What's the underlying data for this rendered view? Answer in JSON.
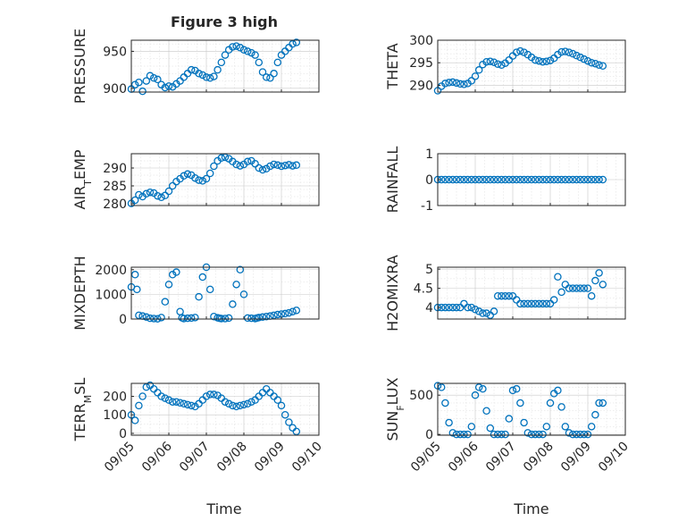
{
  "figure": {
    "title": "Figure 3 high",
    "xlabel": "Time"
  },
  "chart_data": [
    {
      "type": "scatter",
      "panel": 1,
      "ylabel": "PRESSURE",
      "ylim": [
        895,
        965
      ],
      "yticks": [
        900,
        950
      ],
      "yticklabels": [
        "900",
        "950"
      ],
      "xlim": [
        0,
        5
      ],
      "minor_x_per_day": 4,
      "minor_y": [
        910,
        920,
        930,
        940,
        960
      ],
      "show_xticklabels": false,
      "x": [
        0.0,
        0.1,
        0.2,
        0.3,
        0.4,
        0.5,
        0.6,
        0.7,
        0.8,
        0.9,
        1.0,
        1.1,
        1.2,
        1.3,
        1.4,
        1.5,
        1.6,
        1.7,
        1.8,
        1.9,
        2.0,
        2.1,
        2.2,
        2.3,
        2.4,
        2.5,
        2.6,
        2.7,
        2.8,
        2.9,
        3.0,
        3.1,
        3.2,
        3.3,
        3.4,
        3.5,
        3.6,
        3.7,
        3.8,
        3.9,
        4.0,
        4.1,
        4.2,
        4.3,
        4.4
      ],
      "y": [
        899,
        905,
        908,
        896,
        910,
        917,
        914,
        912,
        905,
        901,
        903,
        902,
        906,
        910,
        915,
        920,
        925,
        924,
        920,
        918,
        915,
        914,
        916,
        925,
        935,
        945,
        952,
        956,
        957,
        955,
        952,
        950,
        948,
        945,
        935,
        922,
        915,
        914,
        920,
        935,
        945,
        950,
        955,
        960,
        962
      ]
    },
    {
      "type": "scatter",
      "panel": 2,
      "ylabel": "THETA",
      "ylim": [
        288.5,
        300
      ],
      "yticks": [
        290,
        295,
        300
      ],
      "yticklabels": [
        "290",
        "295",
        "300"
      ],
      "xlim": [
        0,
        5
      ],
      "minor_x_per_day": 4,
      "minor_y": [
        291,
        292,
        293,
        294,
        296,
        297,
        298,
        299
      ],
      "show_xticklabels": false,
      "x": [
        0.0,
        0.1,
        0.2,
        0.3,
        0.4,
        0.5,
        0.6,
        0.7,
        0.8,
        0.9,
        1.0,
        1.1,
        1.2,
        1.3,
        1.4,
        1.5,
        1.6,
        1.7,
        1.8,
        1.9,
        2.0,
        2.1,
        2.2,
        2.3,
        2.4,
        2.5,
        2.6,
        2.7,
        2.8,
        2.9,
        3.0,
        3.1,
        3.2,
        3.3,
        3.4,
        3.5,
        3.6,
        3.7,
        3.8,
        3.9,
        4.0,
        4.1,
        4.2,
        4.3,
        4.4
      ],
      "y": [
        288.8,
        289.8,
        290.4,
        290.6,
        290.7,
        290.5,
        290.3,
        290.2,
        290.4,
        291.0,
        292.0,
        293.4,
        294.6,
        295.2,
        295.3,
        295.1,
        294.7,
        294.5,
        294.9,
        295.6,
        296.5,
        297.3,
        297.6,
        297.3,
        296.8,
        296.2,
        295.6,
        295.4,
        295.2,
        295.3,
        295.5,
        296.0,
        296.8,
        297.4,
        297.5,
        297.3,
        297.0,
        296.6,
        296.2,
        295.8,
        295.4,
        295.0,
        294.8,
        294.5,
        294.3
      ]
    },
    {
      "type": "scatter",
      "panel": 3,
      "ylabel": "AIR_TEMP",
      "ylim": [
        279.5,
        294
      ],
      "yticks": [
        280,
        285,
        290
      ],
      "yticklabels": [
        "280",
        "285",
        "290"
      ],
      "xlim": [
        0,
        5
      ],
      "minor_x_per_day": 4,
      "minor_y": [
        282,
        284,
        286,
        288,
        292
      ],
      "show_xticklabels": false,
      "x": [
        0.0,
        0.1,
        0.2,
        0.3,
        0.4,
        0.5,
        0.6,
        0.7,
        0.8,
        0.9,
        1.0,
        1.1,
        1.2,
        1.3,
        1.4,
        1.5,
        1.6,
        1.7,
        1.8,
        1.9,
        2.0,
        2.1,
        2.2,
        2.3,
        2.4,
        2.5,
        2.6,
        2.7,
        2.8,
        2.9,
        3.0,
        3.1,
        3.2,
        3.3,
        3.4,
        3.5,
        3.6,
        3.7,
        3.8,
        3.9,
        4.0,
        4.1,
        4.2,
        4.3,
        4.4
      ],
      "y": [
        280.1,
        281.0,
        282.5,
        282.0,
        282.8,
        283.2,
        283.0,
        282.2,
        281.8,
        282.3,
        283.5,
        285.0,
        286.2,
        287.0,
        287.8,
        288.3,
        288.0,
        287.2,
        286.6,
        286.4,
        287.0,
        288.5,
        290.5,
        292.0,
        292.8,
        293.0,
        292.6,
        291.8,
        291.0,
        290.6,
        291.0,
        291.8,
        292.0,
        291.2,
        290.0,
        289.5,
        289.8,
        290.5,
        291.0,
        290.8,
        290.5,
        290.7,
        290.9,
        290.6,
        290.8
      ]
    },
    {
      "type": "scatter",
      "panel": 4,
      "ylabel": "RAINFALL",
      "ylim": [
        -1,
        1
      ],
      "yticks": [
        -1,
        0,
        1
      ],
      "yticklabels": [
        "-1",
        "0",
        "1"
      ],
      "xlim": [
        0,
        5
      ],
      "minor_x_per_day": 4,
      "minor_y": [],
      "show_xticklabels": false,
      "x": [
        0.0,
        0.1,
        0.2,
        0.3,
        0.4,
        0.5,
        0.6,
        0.7,
        0.8,
        0.9,
        1.0,
        1.1,
        1.2,
        1.3,
        1.4,
        1.5,
        1.6,
        1.7,
        1.8,
        1.9,
        2.0,
        2.1,
        2.2,
        2.3,
        2.4,
        2.5,
        2.6,
        2.7,
        2.8,
        2.9,
        3.0,
        3.1,
        3.2,
        3.3,
        3.4,
        3.5,
        3.6,
        3.7,
        3.8,
        3.9,
        4.0,
        4.1,
        4.2,
        4.3,
        4.4
      ],
      "y": [
        0,
        0,
        0,
        0,
        0,
        0,
        0,
        0,
        0,
        0,
        0,
        0,
        0,
        0,
        0,
        0,
        0,
        0,
        0,
        0,
        0,
        0,
        0,
        0,
        0,
        0,
        0,
        0,
        0,
        0,
        0,
        0,
        0,
        0,
        0,
        0,
        0,
        0,
        0,
        0,
        0,
        0,
        0,
        0,
        0
      ]
    },
    {
      "type": "scatter",
      "panel": 5,
      "ylabel": "MIXDEPTH",
      "ylim": [
        0,
        2100
      ],
      "yticks": [
        0,
        1000,
        2000
      ],
      "yticklabels": [
        "0",
        "1000",
        "2000"
      ],
      "xlim": [
        0,
        5
      ],
      "minor_x_per_day": 4,
      "minor_y": [
        500,
        1500
      ],
      "show_xticklabels": false,
      "x": [
        0.0,
        0.1,
        0.15,
        0.2,
        0.3,
        0.4,
        0.5,
        0.6,
        0.7,
        0.8,
        0.9,
        1.0,
        1.1,
        1.2,
        1.3,
        1.35,
        1.4,
        1.5,
        1.6,
        1.7,
        1.8,
        1.9,
        2.0,
        2.1,
        2.2,
        2.3,
        2.35,
        2.4,
        2.5,
        2.6,
        2.7,
        2.8,
        2.9,
        3.0,
        3.1,
        3.2,
        3.3,
        3.35,
        3.4,
        3.5,
        3.6,
        3.7,
        3.8,
        3.9,
        4.0,
        4.1,
        4.2,
        4.3,
        4.4
      ],
      "y": [
        1300,
        1800,
        1200,
        150,
        120,
        80,
        30,
        20,
        10,
        60,
        700,
        1400,
        1800,
        1900,
        300,
        50,
        20,
        30,
        40,
        60,
        900,
        1700,
        2100,
        1200,
        100,
        50,
        30,
        20,
        20,
        40,
        600,
        1400,
        2000,
        1000,
        40,
        30,
        20,
        40,
        60,
        80,
        100,
        120,
        150,
        180,
        200,
        220,
        250,
        300,
        350
      ]
    },
    {
      "type": "scatter",
      "panel": 6,
      "ylabel": "H2OMIXRA",
      "ylim": [
        3.7,
        5.05
      ],
      "yticks": [
        4,
        4.5,
        5
      ],
      "yticklabels": [
        "4",
        "4.5",
        "5"
      ],
      "xlim": [
        0,
        5
      ],
      "minor_x_per_day": 4,
      "minor_y": [
        4.25,
        4.75
      ],
      "show_xticklabels": false,
      "x": [
        0.0,
        0.1,
        0.2,
        0.3,
        0.4,
        0.5,
        0.6,
        0.7,
        0.8,
        0.9,
        1.0,
        1.1,
        1.2,
        1.3,
        1.4,
        1.5,
        1.6,
        1.7,
        1.8,
        1.9,
        2.0,
        2.1,
        2.2,
        2.3,
        2.4,
        2.5,
        2.6,
        2.7,
        2.8,
        2.9,
        3.0,
        3.1,
        3.2,
        3.3,
        3.4,
        3.5,
        3.6,
        3.7,
        3.8,
        3.9,
        4.0,
        4.1,
        4.2,
        4.3,
        4.4
      ],
      "y": [
        4.0,
        4.0,
        4.0,
        4.0,
        4.0,
        4.0,
        4.0,
        4.1,
        4.0,
        4.0,
        3.95,
        3.9,
        3.85,
        3.85,
        3.8,
        3.9,
        4.3,
        4.3,
        4.3,
        4.3,
        4.3,
        4.2,
        4.1,
        4.1,
        4.1,
        4.1,
        4.1,
        4.1,
        4.1,
        4.1,
        4.1,
        4.2,
        4.8,
        4.4,
        4.6,
        4.5,
        4.5,
        4.5,
        4.5,
        4.5,
        4.5,
        4.3,
        4.7,
        4.9,
        4.6
      ]
    },
    {
      "type": "scatter",
      "panel": 7,
      "ylabel": "TERR_MSL",
      "ylim": [
        -10,
        270
      ],
      "yticks": [
        0,
        100,
        200
      ],
      "yticklabels": [
        "0",
        "100",
        "200"
      ],
      "xlim": [
        0,
        5
      ],
      "minor_x_per_day": 4,
      "minor_y": [
        50,
        150,
        250
      ],
      "show_xticklabels": true,
      "x": [
        0.0,
        0.1,
        0.2,
        0.3,
        0.4,
        0.5,
        0.6,
        0.7,
        0.8,
        0.9,
        1.0,
        1.1,
        1.2,
        1.3,
        1.4,
        1.5,
        1.6,
        1.7,
        1.8,
        1.9,
        2.0,
        2.1,
        2.2,
        2.3,
        2.4,
        2.5,
        2.6,
        2.7,
        2.8,
        2.9,
        3.0,
        3.1,
        3.2,
        3.3,
        3.4,
        3.5,
        3.6,
        3.7,
        3.8,
        3.9,
        4.0,
        4.1,
        4.2,
        4.3,
        4.4
      ],
      "y": [
        100,
        70,
        150,
        200,
        250,
        260,
        240,
        220,
        200,
        190,
        180,
        170,
        170,
        165,
        160,
        155,
        150,
        145,
        160,
        180,
        200,
        210,
        210,
        205,
        190,
        170,
        160,
        150,
        145,
        150,
        155,
        160,
        170,
        180,
        200,
        220,
        240,
        220,
        200,
        180,
        150,
        100,
        60,
        30,
        10
      ]
    },
    {
      "type": "scatter",
      "panel": 8,
      "ylabel": "SUN_FLUX",
      "ylim": [
        -10,
        650
      ],
      "yticks": [
        0,
        500
      ],
      "yticklabels": [
        "0",
        "500"
      ],
      "xlim": [
        0,
        5
      ],
      "minor_x_per_day": 4,
      "minor_y": [
        100,
        200,
        300,
        400,
        600
      ],
      "show_xticklabels": true,
      "x": [
        0.0,
        0.1,
        0.2,
        0.3,
        0.4,
        0.5,
        0.6,
        0.7,
        0.8,
        0.9,
        1.0,
        1.1,
        1.2,
        1.3,
        1.4,
        1.5,
        1.6,
        1.7,
        1.8,
        1.9,
        2.0,
        2.1,
        2.2,
        2.3,
        2.4,
        2.5,
        2.6,
        2.7,
        2.8,
        2.9,
        3.0,
        3.1,
        3.2,
        3.3,
        3.4,
        3.5,
        3.6,
        3.7,
        3.8,
        3.9,
        4.0,
        4.1,
        4.2,
        4.3,
        4.4
      ],
      "y": [
        620,
        600,
        400,
        150,
        20,
        0,
        0,
        0,
        0,
        100,
        500,
        600,
        580,
        300,
        80,
        0,
        0,
        0,
        0,
        200,
        560,
        580,
        400,
        150,
        20,
        0,
        0,
        0,
        0,
        100,
        400,
        520,
        560,
        350,
        100,
        20,
        0,
        0,
        0,
        0,
        0,
        100,
        250,
        400,
        400
      ]
    }
  ],
  "x_ticks": [
    0,
    1,
    2,
    3,
    4,
    5
  ],
  "x_ticklabels": [
    "09/05",
    "09/06",
    "09/07",
    "09/08",
    "09/09",
    "09/10"
  ],
  "colors": {
    "marker": "#0072BD",
    "axis": "#262626",
    "grid": "#c8c8c8"
  }
}
